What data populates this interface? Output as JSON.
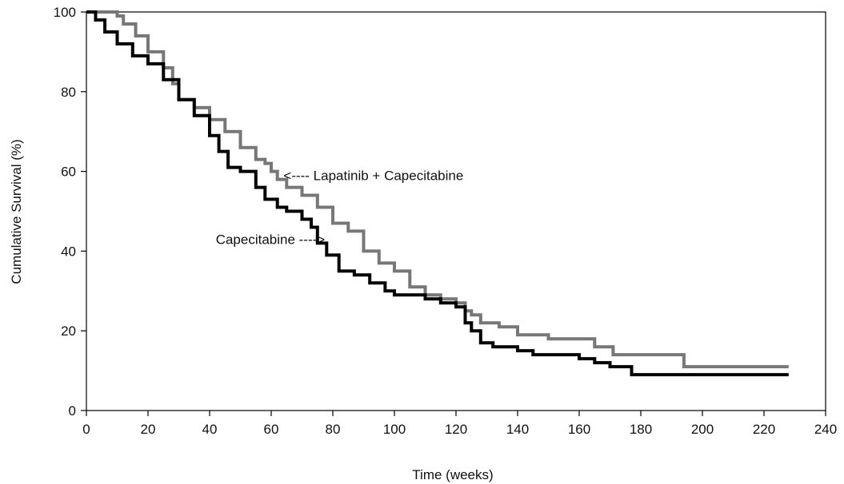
{
  "chart_data": {
    "type": "line",
    "title": "",
    "xlabel": "Time (weeks)",
    "ylabel": "Cumulative Survival (%)",
    "xlim": [
      0,
      240
    ],
    "ylim": [
      0,
      100
    ],
    "xticks": [
      0,
      20,
      40,
      60,
      80,
      100,
      120,
      140,
      160,
      180,
      200,
      220,
      240
    ],
    "yticks": [
      0,
      20,
      40,
      60,
      80,
      100
    ],
    "grid": false,
    "legend": "none",
    "series": [
      {
        "name": "Lapatinib + Capecitabine",
        "color": "#777777",
        "step": true,
        "points": [
          [
            0,
            100
          ],
          [
            10,
            99
          ],
          [
            12,
            97
          ],
          [
            16,
            94
          ],
          [
            20,
            90
          ],
          [
            25,
            86
          ],
          [
            28,
            82
          ],
          [
            30,
            78
          ],
          [
            35,
            76
          ],
          [
            40,
            73
          ],
          [
            45,
            70
          ],
          [
            50,
            66
          ],
          [
            55,
            63
          ],
          [
            58,
            62
          ],
          [
            60,
            60
          ],
          [
            62,
            58
          ],
          [
            65,
            56
          ],
          [
            70,
            54
          ],
          [
            75,
            51
          ],
          [
            80,
            47
          ],
          [
            85,
            45
          ],
          [
            90,
            40
          ],
          [
            95,
            37
          ],
          [
            100,
            35
          ],
          [
            105,
            31
          ],
          [
            110,
            29
          ],
          [
            115,
            28
          ],
          [
            120,
            27
          ],
          [
            123,
            25
          ],
          [
            125,
            24
          ],
          [
            128,
            22
          ],
          [
            134,
            21
          ],
          [
            140,
            19
          ],
          [
            150,
            18
          ],
          [
            165,
            16
          ],
          [
            171,
            14
          ],
          [
            194,
            11
          ],
          [
            228,
            11
          ]
        ]
      },
      {
        "name": "Capecitabine",
        "color": "#000000",
        "step": true,
        "points": [
          [
            0,
            100
          ],
          [
            3,
            98
          ],
          [
            6,
            95
          ],
          [
            10,
            92
          ],
          [
            15,
            89
          ],
          [
            20,
            87
          ],
          [
            25,
            83
          ],
          [
            30,
            78
          ],
          [
            35,
            74
          ],
          [
            40,
            69
          ],
          [
            43,
            65
          ],
          [
            46,
            61
          ],
          [
            50,
            60
          ],
          [
            55,
            56
          ],
          [
            58,
            53
          ],
          [
            62,
            51
          ],
          [
            65,
            50
          ],
          [
            70,
            48
          ],
          [
            73,
            46
          ],
          [
            75,
            42
          ],
          [
            78,
            39
          ],
          [
            82,
            35
          ],
          [
            87,
            34
          ],
          [
            92,
            32
          ],
          [
            97,
            30
          ],
          [
            100,
            29
          ],
          [
            110,
            28
          ],
          [
            115,
            27
          ],
          [
            120,
            26
          ],
          [
            123,
            22
          ],
          [
            125,
            20
          ],
          [
            128,
            17
          ],
          [
            132,
            16
          ],
          [
            140,
            15
          ],
          [
            145,
            14
          ],
          [
            160,
            13
          ],
          [
            165,
            12
          ],
          [
            170,
            11
          ],
          [
            177,
            9
          ],
          [
            228,
            9
          ]
        ]
      }
    ],
    "annotations": [
      {
        "text": "<---- Lapatinib + Capecitabine",
        "x": 64,
        "y": 59
      },
      {
        "text": "Capecitabine ---->",
        "x": 42,
        "y": 43
      }
    ]
  }
}
